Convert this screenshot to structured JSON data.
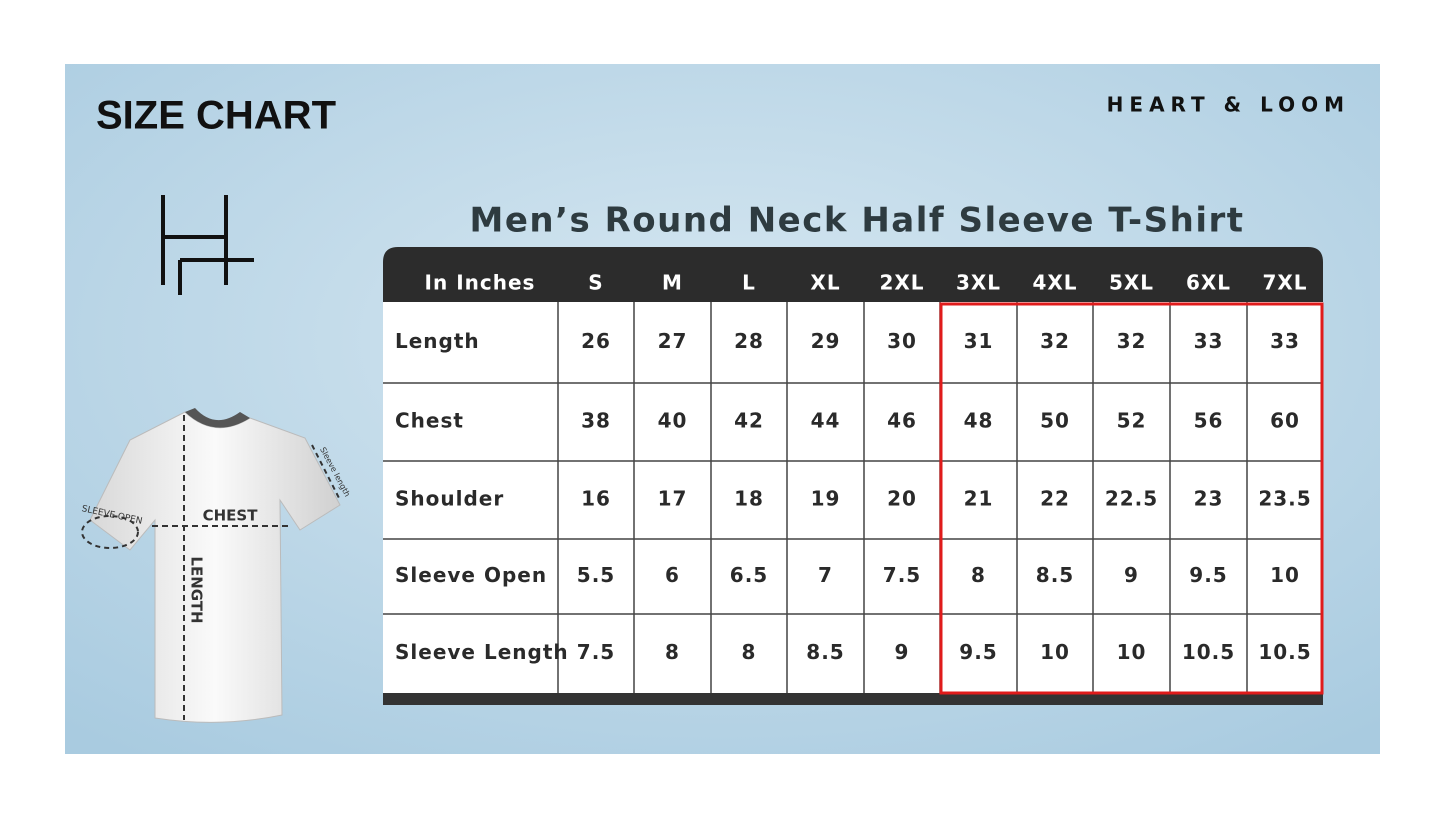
{
  "header": {
    "title": "SIZE CHART",
    "brand": "HEART & LOOM"
  },
  "diagram": {
    "chest": "CHEST",
    "length": "LENGTH",
    "sleeve_open": "SLEEVE OPEN",
    "sleeve_length": "Sleeve length"
  },
  "table": {
    "title": "Men’s Round Neck Half Sleeve T-Shirt",
    "columns": [
      "In Inches",
      "S",
      "M",
      "L",
      "XL",
      "2XL",
      "3XL",
      "4XL",
      "5XL",
      "6XL",
      "7XL"
    ],
    "rows": [
      [
        "Length",
        "26",
        "27",
        "28",
        "29",
        "30",
        "31",
        "32",
        "32",
        "33",
        "33"
      ],
      [
        "Chest",
        "38",
        "40",
        "42",
        "44",
        "46",
        "48",
        "50",
        "52",
        "56",
        "60"
      ],
      [
        "Shoulder",
        "16",
        "17",
        "18",
        "19",
        "20",
        "21",
        "22",
        "22.5",
        "23",
        "23.5"
      ],
      [
        "Sleeve Open",
        "5.5",
        "6",
        "6.5",
        "7",
        "7.5",
        "8",
        "8.5",
        "9",
        "9.5",
        "10"
      ],
      [
        "Sleeve Length",
        "7.5",
        "8",
        "8",
        "8.5",
        "9",
        "9.5",
        "10",
        "10",
        "10.5",
        "10.5"
      ]
    ]
  }
}
